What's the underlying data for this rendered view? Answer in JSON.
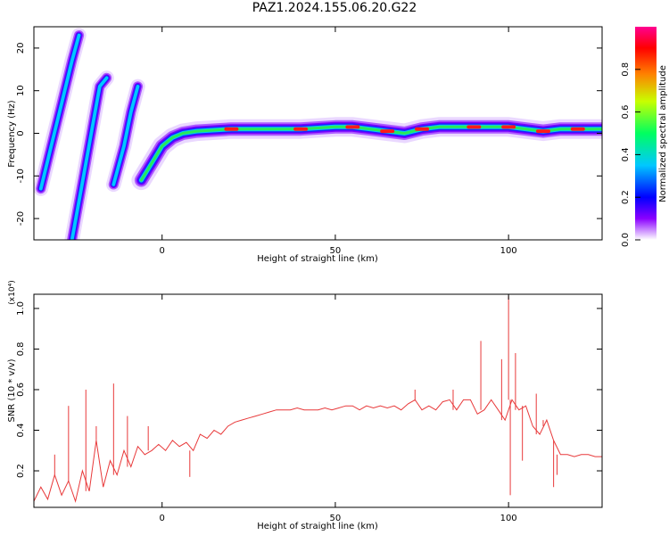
{
  "title": "PAZ1.2024.155.06.20.G22",
  "chart_data": [
    {
      "type": "heatmap",
      "xlabel": "Height of straight line (km)",
      "ylabel": "Frequency (Hz)",
      "xlim": [
        -37,
        127
      ],
      "ylim": [
        -25,
        25
      ],
      "xticks": [
        0,
        50,
        100
      ],
      "yticks": [
        -20,
        -10,
        0,
        10,
        20
      ],
      "colorbar": {
        "label": "Normalized spectral amplitude",
        "range": [
          0,
          1
        ],
        "ticks": [
          "0.0",
          "0.2",
          "0.4",
          "0.6",
          "0.8"
        ],
        "colormap": [
          "#ffffff",
          "#8a00ff",
          "#0000ff",
          "#00c8ff",
          "#00ff60",
          "#c8ff00",
          "#ff7f00",
          "#ff0000",
          "#ff0090"
        ]
      },
      "ridges": [
        {
          "name": "main",
          "points": [
            [
              -6,
              -11
            ],
            [
              -3,
              -7
            ],
            [
              0,
              -3
            ],
            [
              3,
              -1
            ],
            [
              6,
              0
            ],
            [
              10,
              0.5
            ],
            [
              20,
              1
            ],
            [
              30,
              1
            ],
            [
              40,
              1
            ],
            [
              50,
              1.5
            ],
            [
              55,
              1.5
            ],
            [
              60,
              1
            ],
            [
              65,
              0.5
            ],
            [
              70,
              0
            ],
            [
              75,
              1
            ],
            [
              80,
              1.5
            ],
            [
              90,
              1.5
            ],
            [
              95,
              1.5
            ],
            [
              100,
              1.5
            ],
            [
              105,
              1
            ],
            [
              110,
              0.5
            ],
            [
              115,
              1
            ],
            [
              120,
              1
            ],
            [
              127,
              1
            ]
          ]
        },
        {
          "name": "alias-1",
          "points": [
            [
              -35,
              -13
            ],
            [
              -32,
              -3
            ],
            [
              -29,
              7
            ],
            [
              -26,
              17
            ],
            [
              -24,
              23
            ]
          ]
        },
        {
          "name": "alias-2",
          "points": [
            [
              -26,
              -25
            ],
            [
              -24,
              -16
            ],
            [
              -22,
              -7
            ],
            [
              -20,
              2
            ],
            [
              -18,
              11
            ],
            [
              -16,
              13
            ]
          ]
        },
        {
          "name": "alias-3",
          "points": [
            [
              -14,
              -12
            ],
            [
              -11,
              -3
            ],
            [
              -9,
              5
            ],
            [
              -7,
              11
            ]
          ]
        }
      ]
    },
    {
      "type": "line",
      "xlabel": "Height of straight line (km)",
      "ylabel": "SNR (10 * v/v)",
      "y_scale_label": "(x10⁴)",
      "xlim": [
        -37,
        127
      ],
      "ylim": [
        0.02,
        1.07
      ],
      "xticks": [
        0,
        50,
        100
      ],
      "yticks": [
        0.2,
        0.4,
        0.6,
        0.8,
        1.0
      ],
      "ytick_labels": [
        "0.2",
        "0.4",
        "0.6",
        "0.8",
        "1.0"
      ],
      "color": "#e8393a",
      "series": [
        {
          "x": [
            -37,
            -35,
            -33,
            -31,
            -29,
            -27,
            -25,
            -23,
            -21,
            -19,
            -17,
            -15,
            -13,
            -11,
            -9,
            -7,
            -5,
            -3,
            -1,
            1,
            3,
            5,
            7,
            9,
            11,
            13,
            15,
            17,
            19,
            21,
            23,
            25,
            27,
            29,
            31,
            33,
            35,
            37,
            39,
            41,
            43,
            45,
            47,
            49,
            51,
            53,
            55,
            57,
            59,
            61,
            63,
            65,
            67,
            69,
            71,
            73,
            75,
            77,
            79,
            81,
            83,
            85,
            87,
            89,
            91,
            93,
            95,
            97,
            99,
            101,
            103,
            105,
            107,
            109,
            111,
            113,
            115,
            117,
            119,
            121,
            123,
            125,
            127
          ],
          "values": [
            0.05,
            0.12,
            0.06,
            0.18,
            0.08,
            0.15,
            0.05,
            0.2,
            0.1,
            0.35,
            0.12,
            0.25,
            0.18,
            0.3,
            0.22,
            0.32,
            0.28,
            0.3,
            0.33,
            0.3,
            0.35,
            0.32,
            0.34,
            0.3,
            0.38,
            0.36,
            0.4,
            0.38,
            0.42,
            0.44,
            0.45,
            0.46,
            0.47,
            0.48,
            0.49,
            0.5,
            0.5,
            0.5,
            0.51,
            0.5,
            0.5,
            0.5,
            0.51,
            0.5,
            0.51,
            0.52,
            0.52,
            0.5,
            0.52,
            0.51,
            0.52,
            0.51,
            0.52,
            0.5,
            0.53,
            0.55,
            0.5,
            0.52,
            0.5,
            0.54,
            0.55,
            0.5,
            0.55,
            0.55,
            0.48,
            0.5,
            0.55,
            0.5,
            0.45,
            0.55,
            0.5,
            0.52,
            0.42,
            0.38,
            0.45,
            0.35,
            0.28,
            0.28,
            0.27,
            0.28,
            0.28,
            0.27,
            0.27
          ]
        },
        {
          "name": "spikes",
          "x": [
            -31,
            -27,
            -22,
            -19,
            -14,
            -10,
            -4,
            8,
            73,
            84,
            92,
            98,
            100,
            100.5,
            102,
            104,
            108,
            110,
            113,
            114
          ],
          "values": [
            0.28,
            0.52,
            0.6,
            0.42,
            0.63,
            0.47,
            0.42,
            0.17,
            0.6,
            0.6,
            0.84,
            0.75,
            1.06,
            0.08,
            0.78,
            0.25,
            0.58,
            0.42,
            0.12,
            0.18
          ]
        }
      ]
    }
  ]
}
